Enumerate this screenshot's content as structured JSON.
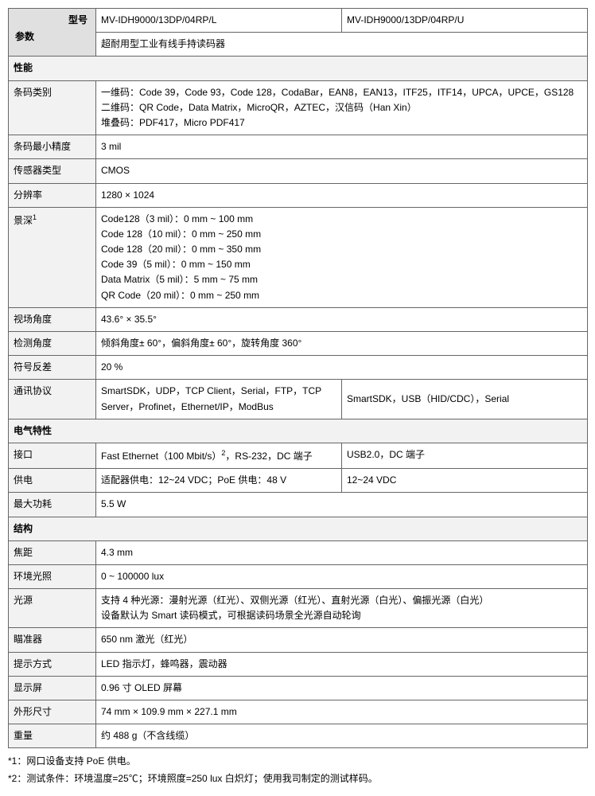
{
  "header": {
    "model_label": "型号",
    "param_label": "参数",
    "model1": "MV-IDH9000/13DP/04RP/L",
    "model2": "MV-IDH9000/13DP/04RP/U",
    "desc": "超耐用型工业有线手持读码器"
  },
  "sections": {
    "performance": "性能",
    "electrical": "电气特性",
    "structure": "结构"
  },
  "rows": {
    "barcode_type": {
      "label": "条码类别",
      "value": "一维码：Code 39，Code 93，Code 128，CodaBar，EAN8，EAN13，ITF25，ITF14，UPCA，UPCE，GS128\n二维码：QR Code，Data Matrix，MicroQR，AZTEC，汉信码（Han Xin）\n堆叠码：PDF417，Micro PDF417"
    },
    "min_precision": {
      "label": "条码最小精度",
      "value": "3 mil"
    },
    "sensor_type": {
      "label": "传感器类型",
      "value": "CMOS"
    },
    "resolution": {
      "label": "分辨率",
      "value": "1280 × 1024"
    },
    "dof": {
      "label_pre": "景深",
      "label_sup": "1",
      "value": "Code128（3 mil）：0 mm ~ 100 mm\nCode 128（10 mil）：0 mm ~ 250 mm\nCode 128（20 mil）：0 mm ~ 350 mm\nCode 39（5 mil）：0 mm ~ 150 mm\nData Matrix（5 mil）：5 mm ~ 75 mm\nQR Code（20 mil）：0 mm ~ 250 mm"
    },
    "fov": {
      "label": "视场角度",
      "value": "43.6° × 35.5°"
    },
    "detect_angle": {
      "label": "检测角度",
      "value": "倾斜角度± 60°，偏斜角度± 60°，旋转角度 360°"
    },
    "contrast": {
      "label": "符号反差",
      "value": "20 %"
    },
    "protocol": {
      "label": "通讯协议",
      "v1": "SmartSDK，UDP，TCP Client，Serial，FTP，TCP Server，Profinet，Ethernet/IP，ModBus",
      "v2": "SmartSDK，USB（HID/CDC），Serial"
    },
    "interface": {
      "label": "接口",
      "v1_pre": "Fast Ethernet（100 Mbit/s）",
      "v1_sup": "2",
      "v1_post": "，RS-232，DC 端子",
      "v2": "USB2.0，DC 端子"
    },
    "power_supply": {
      "label": "供电",
      "v1": "适配器供电：12~24 VDC；PoE 供电：48 V",
      "v2": "12~24 VDC"
    },
    "max_power": {
      "label": "最大功耗",
      "value": "5.5 W"
    },
    "focal": {
      "label": "焦距",
      "value": "4.3 mm"
    },
    "ambient": {
      "label": "环境光照",
      "value": "0 ~ 100000 lux"
    },
    "light": {
      "label": "光源",
      "value": "支持 4 种光源：漫射光源（红光）、双侧光源（红光）、直射光源（白光）、偏振光源（白光）\n设备默认为 Smart 读码模式，可根据读码场景全光源自动轮询"
    },
    "aiming": {
      "label": "瞄准器",
      "value": "650 nm 激光（红光）"
    },
    "indicator": {
      "label": "提示方式",
      "value": "LED 指示灯，蜂鸣器，震动器"
    },
    "display": {
      "label": "显示屏",
      "value": "0.96 寸 OLED 屏幕"
    },
    "dimension": {
      "label": "外形尺寸",
      "value": "74 mm × 109.9 mm × 227.1 mm"
    },
    "weight": {
      "label": "重量",
      "value": "约 488 g（不含线缆）"
    }
  },
  "footnotes": {
    "f1": "*1：网口设备支持 PoE 供电。",
    "f2": "*2：测试条件：环境温度=25℃；环境照度=250 lux 白炽灯；使用我司制定的测试样码。"
  }
}
